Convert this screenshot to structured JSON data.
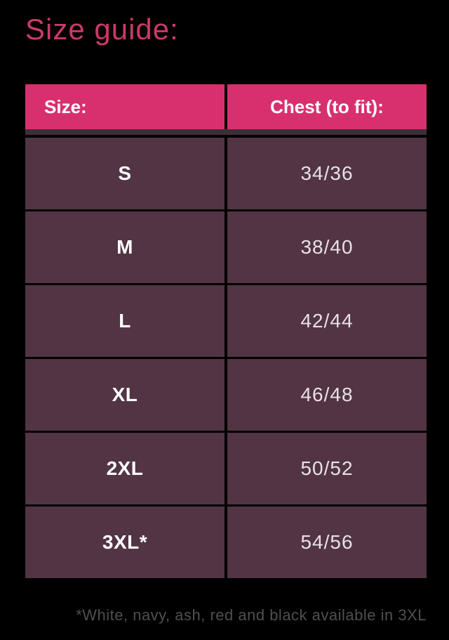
{
  "page": {
    "title": "Size guide:",
    "footnote": "*White, navy, ash, red and black available in 3XL"
  },
  "table": {
    "columns": [
      {
        "label": "Size:"
      },
      {
        "label": "Chest (to fit):"
      }
    ],
    "rows": [
      {
        "size": "S",
        "chest": "34/36"
      },
      {
        "size": "M",
        "chest": "38/40"
      },
      {
        "size": "L",
        "chest": "42/44"
      },
      {
        "size": "XL",
        "chest": "46/48"
      },
      {
        "size": "2XL",
        "chest": "50/52"
      },
      {
        "size": "3XL*",
        "chest": "54/56"
      }
    ]
  },
  "colors": {
    "background": "#000000",
    "title_pink": "#ca396c",
    "header_pink": "#d8306f",
    "header_text": "#ffffff",
    "row_plum": "#523444",
    "size_text": "#ffffff",
    "chest_text": "#e8e1e6",
    "footnote_gray": "#4f4f4f"
  }
}
